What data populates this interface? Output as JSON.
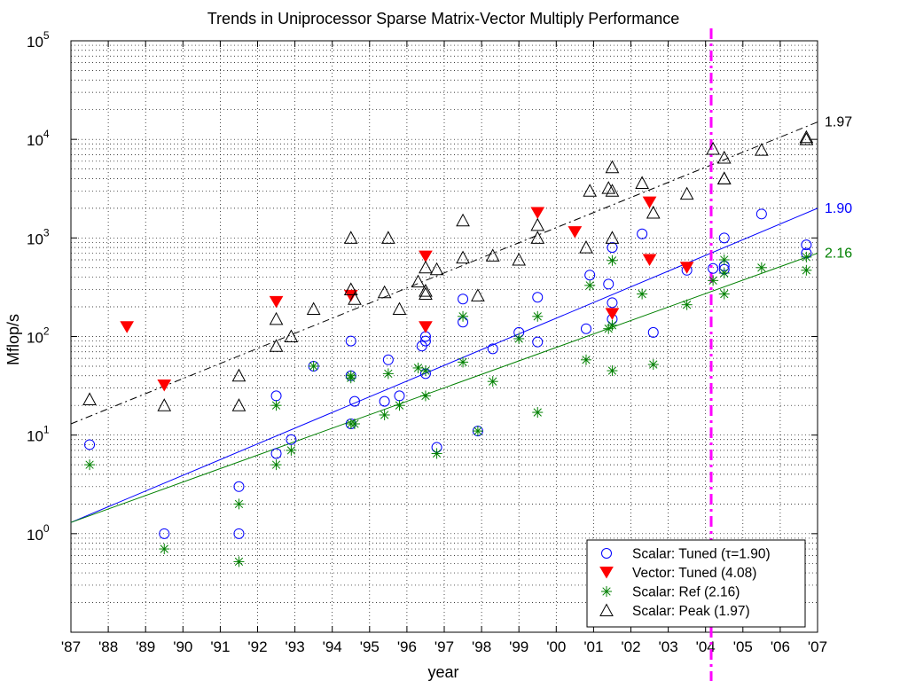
{
  "chart_data": {
    "type": "scatter",
    "title": "Trends in Uniprocessor Sparse Matrix-Vector Multiply Performance",
    "xlabel": "year",
    "ylabel": "Mflop/s",
    "xscale": "linear",
    "yscale": "log",
    "xlim": [
      1987,
      2007
    ],
    "ylim": [
      0.1,
      100000
    ],
    "grid": true,
    "legend_position": "bottom-right",
    "x_tick_labels": [
      "'87",
      "'88",
      "'89",
      "'90",
      "'91",
      "'92",
      "'93",
      "'94",
      "'95",
      "'96",
      "'97",
      "'98",
      "'99",
      "'00",
      "'01",
      "'02",
      "'03",
      "'04",
      "'05",
      "'06",
      "'07"
    ],
    "y_tick_labels": [
      {
        "value": 1,
        "base": "10",
        "exp": "0"
      },
      {
        "value": 10,
        "base": "10",
        "exp": "1"
      },
      {
        "value": 100,
        "base": "10",
        "exp": "2"
      },
      {
        "value": 1000,
        "base": "10",
        "exp": "3"
      },
      {
        "value": 10000,
        "base": "10",
        "exp": "4"
      },
      {
        "value": 100000,
        "base": "10",
        "exp": "5"
      }
    ],
    "series": [
      {
        "name": "Scalar: Tuned (τ=1.90)",
        "marker": "circle-open",
        "color": "#0000ff",
        "points": [
          [
            1987.5,
            8
          ],
          [
            1989.5,
            1.0
          ],
          [
            1991.5,
            3.0
          ],
          [
            1991.5,
            1.0
          ],
          [
            1992.5,
            25
          ],
          [
            1992.5,
            6.5
          ],
          [
            1992.9,
            9
          ],
          [
            1993.5,
            50
          ],
          [
            1994.5,
            90
          ],
          [
            1994.5,
            40
          ],
          [
            1994.5,
            13
          ],
          [
            1994.6,
            22
          ],
          [
            1995.5,
            58
          ],
          [
            1995.4,
            22
          ],
          [
            1995.8,
            25
          ],
          [
            1996.4,
            80
          ],
          [
            1996.5,
            90
          ],
          [
            1996.5,
            100
          ],
          [
            1996.5,
            42
          ],
          [
            1996.8,
            7.5
          ],
          [
            1997.5,
            240
          ],
          [
            1997.5,
            140
          ],
          [
            1997.9,
            11
          ],
          [
            1998.3,
            75
          ],
          [
            1999.0,
            110
          ],
          [
            1999.5,
            250
          ],
          [
            1999.5,
            88
          ],
          [
            2000.8,
            120
          ],
          [
            2000.9,
            420
          ],
          [
            2001.4,
            340
          ],
          [
            2001.5,
            800
          ],
          [
            2001.5,
            220
          ],
          [
            2001.5,
            150
          ],
          [
            2002.3,
            1100
          ],
          [
            2002.6,
            110
          ],
          [
            2003.5,
            470
          ],
          [
            2004.2,
            490
          ],
          [
            2004.5,
            480
          ],
          [
            2004.5,
            1000
          ],
          [
            2004.5,
            520
          ],
          [
            2005.5,
            1750
          ],
          [
            2006.7,
            850
          ],
          [
            2006.7,
            700
          ]
        ]
      },
      {
        "name": "Vector: Tuned (4.08)",
        "marker": "triangle-down-filled",
        "color": "#ff0000",
        "points": [
          [
            1988.5,
            125
          ],
          [
            1989.5,
            32
          ],
          [
            1992.5,
            225
          ],
          [
            1994.5,
            260
          ],
          [
            1996.5,
            650
          ],
          [
            1996.5,
            125
          ],
          [
            1999.5,
            1800
          ],
          [
            2000.5,
            1150
          ],
          [
            2001.5,
            170
          ],
          [
            2002.5,
            2300
          ],
          [
            2002.5,
            600
          ],
          [
            2003.5,
            500
          ]
        ]
      },
      {
        "name": "Scalar: Ref (2.16)",
        "marker": "asterisk",
        "color": "#008000",
        "points": [
          [
            1987.5,
            5
          ],
          [
            1989.5,
            0.7
          ],
          [
            1991.5,
            2.0
          ],
          [
            1991.5,
            0.52
          ],
          [
            1992.5,
            20
          ],
          [
            1992.5,
            5
          ],
          [
            1992.9,
            7
          ],
          [
            1993.5,
            50
          ],
          [
            1994.5,
            40
          ],
          [
            1994.5,
            38
          ],
          [
            1994.5,
            13
          ],
          [
            1994.6,
            13
          ],
          [
            1995.4,
            16
          ],
          [
            1995.5,
            42
          ],
          [
            1995.8,
            20
          ],
          [
            1996.3,
            48
          ],
          [
            1996.5,
            45
          ],
          [
            1996.5,
            25
          ],
          [
            1996.8,
            6.5
          ],
          [
            1997.5,
            160
          ],
          [
            1997.5,
            55
          ],
          [
            1997.9,
            11
          ],
          [
            1998.3,
            35
          ],
          [
            1999.0,
            95
          ],
          [
            1999.5,
            160
          ],
          [
            1999.5,
            17
          ],
          [
            2000.8,
            58
          ],
          [
            2000.9,
            330
          ],
          [
            2001.4,
            120
          ],
          [
            2001.5,
            590
          ],
          [
            2001.5,
            130
          ],
          [
            2001.5,
            45
          ],
          [
            2002.3,
            270
          ],
          [
            2002.6,
            52
          ],
          [
            2003.5,
            210
          ],
          [
            2004.2,
            370
          ],
          [
            2004.5,
            270
          ],
          [
            2004.5,
            440
          ],
          [
            2004.5,
            600
          ],
          [
            2005.5,
            500
          ],
          [
            2006.7,
            470
          ],
          [
            2006.7,
            640
          ]
        ]
      },
      {
        "name": "Scalar: Peak (1.97)",
        "marker": "triangle-up-open",
        "color": "#000000",
        "points": [
          [
            1987.5,
            23
          ],
          [
            1989.5,
            20
          ],
          [
            1991.5,
            40
          ],
          [
            1991.5,
            20
          ],
          [
            1992.5,
            150
          ],
          [
            1992.5,
            80
          ],
          [
            1992.9,
            100
          ],
          [
            1993.5,
            190
          ],
          [
            1994.5,
            1000
          ],
          [
            1994.5,
            300
          ],
          [
            1994.6,
            240
          ],
          [
            1995.5,
            1000
          ],
          [
            1995.4,
            280
          ],
          [
            1995.8,
            190
          ],
          [
            1996.3,
            360
          ],
          [
            1996.5,
            500
          ],
          [
            1996.5,
            290
          ],
          [
            1996.5,
            270
          ],
          [
            1996.8,
            480
          ],
          [
            1997.5,
            1500
          ],
          [
            1997.5,
            630
          ],
          [
            1997.9,
            260
          ],
          [
            1998.3,
            660
          ],
          [
            1999.0,
            600
          ],
          [
            1999.5,
            1350
          ],
          [
            1999.5,
            1000
          ],
          [
            2000.8,
            800
          ],
          [
            2000.9,
            3000
          ],
          [
            2001.4,
            3200
          ],
          [
            2001.5,
            5200
          ],
          [
            2001.5,
            3000
          ],
          [
            2001.5,
            1000
          ],
          [
            2002.3,
            3600
          ],
          [
            2002.6,
            1800
          ],
          [
            2003.5,
            2800
          ],
          [
            2004.2,
            8000
          ],
          [
            2004.5,
            4000
          ],
          [
            2004.5,
            4000
          ],
          [
            2004.5,
            6500
          ],
          [
            2005.5,
            7800
          ],
          [
            2006.7,
            10000
          ],
          [
            2006.7,
            10500
          ]
        ]
      }
    ],
    "trend_lines": [
      {
        "series": "Scalar: Tuned (τ=1.90)",
        "label": "1.90",
        "color": "#0000ff",
        "dash": "solid",
        "from": [
          1987,
          1.3
        ],
        "to": [
          2007,
          2000
        ]
      },
      {
        "series": "Scalar: Ref (2.16)",
        "label": "2.16",
        "color": "#008000",
        "dash": "solid",
        "from": [
          1987,
          1.3
        ],
        "to": [
          2007,
          700
        ]
      },
      {
        "series": "Scalar: Peak (1.97)",
        "label": "1.97",
        "color": "#000000",
        "dash": "dashdot",
        "from": [
          1987,
          13
        ],
        "to": [
          2007,
          15000
        ]
      }
    ],
    "annotations": [
      {
        "type": "vertical-line",
        "x": 2004.15,
        "color": "#ff00ff",
        "dash": "dashdot"
      }
    ]
  }
}
